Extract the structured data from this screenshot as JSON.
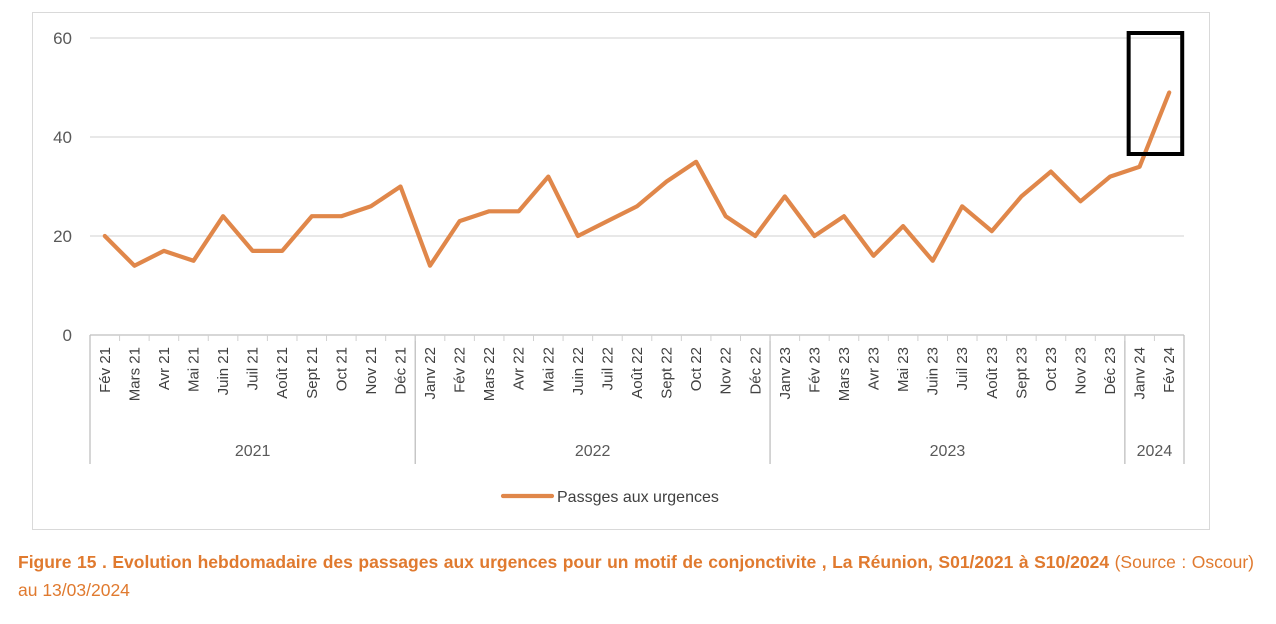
{
  "chart_data": {
    "type": "line",
    "title": "",
    "xlabel": "",
    "ylabel": "",
    "ylim": [
      0,
      60
    ],
    "yticks": [
      0,
      20,
      40,
      60
    ],
    "grid": true,
    "categories": [
      "Fév 21",
      "Mars 21",
      "Avr 21",
      "Mai 21",
      "Juin 21",
      "Juil 21",
      "Août 21",
      "Sept 21",
      "Oct 21",
      "Nov 21",
      "Déc 21",
      "Janv 22",
      "Fév 22",
      "Mars 22",
      "Avr 22",
      "Mai 22",
      "Juin 22",
      "Juil 22",
      "Août 22",
      "Sept 22",
      "Oct 22",
      "Nov 22",
      "Déc 22",
      "Janv 23",
      "Fév 23",
      "Mars 23",
      "Avr 23",
      "Mai 23",
      "Juin 23",
      "Juil 23",
      "Août 23",
      "Sept 23",
      "Oct 23",
      "Nov 23",
      "Déc 23",
      "Janv 24",
      "Fév 24"
    ],
    "year_groups": [
      {
        "label": "2021",
        "count": 11
      },
      {
        "label": "2022",
        "count": 12
      },
      {
        "label": "2023",
        "count": 12
      },
      {
        "label": "2024",
        "count": 2
      }
    ],
    "series": [
      {
        "name": "Passges aux urgences",
        "color": "#e0874a",
        "values": [
          20,
          14,
          17,
          15,
          24,
          17,
          17,
          24,
          24,
          26,
          30,
          14,
          23,
          25,
          25,
          32,
          20,
          23,
          26,
          31,
          35,
          24,
          20,
          28,
          20,
          24,
          16,
          22,
          15,
          26,
          21,
          28,
          33,
          27,
          32,
          34,
          49
        ]
      }
    ],
    "legend_position": "bottom",
    "annotation": "highlight-box around last two points"
  },
  "caption": {
    "bold": "Figure 15 . Evolution hebdomadaire des passages aux urgences pour un motif de conjonctivite , La Réunion, S01/2021 à S10/2024",
    "normal": " (Source : Oscour) au 13/03/2024"
  }
}
